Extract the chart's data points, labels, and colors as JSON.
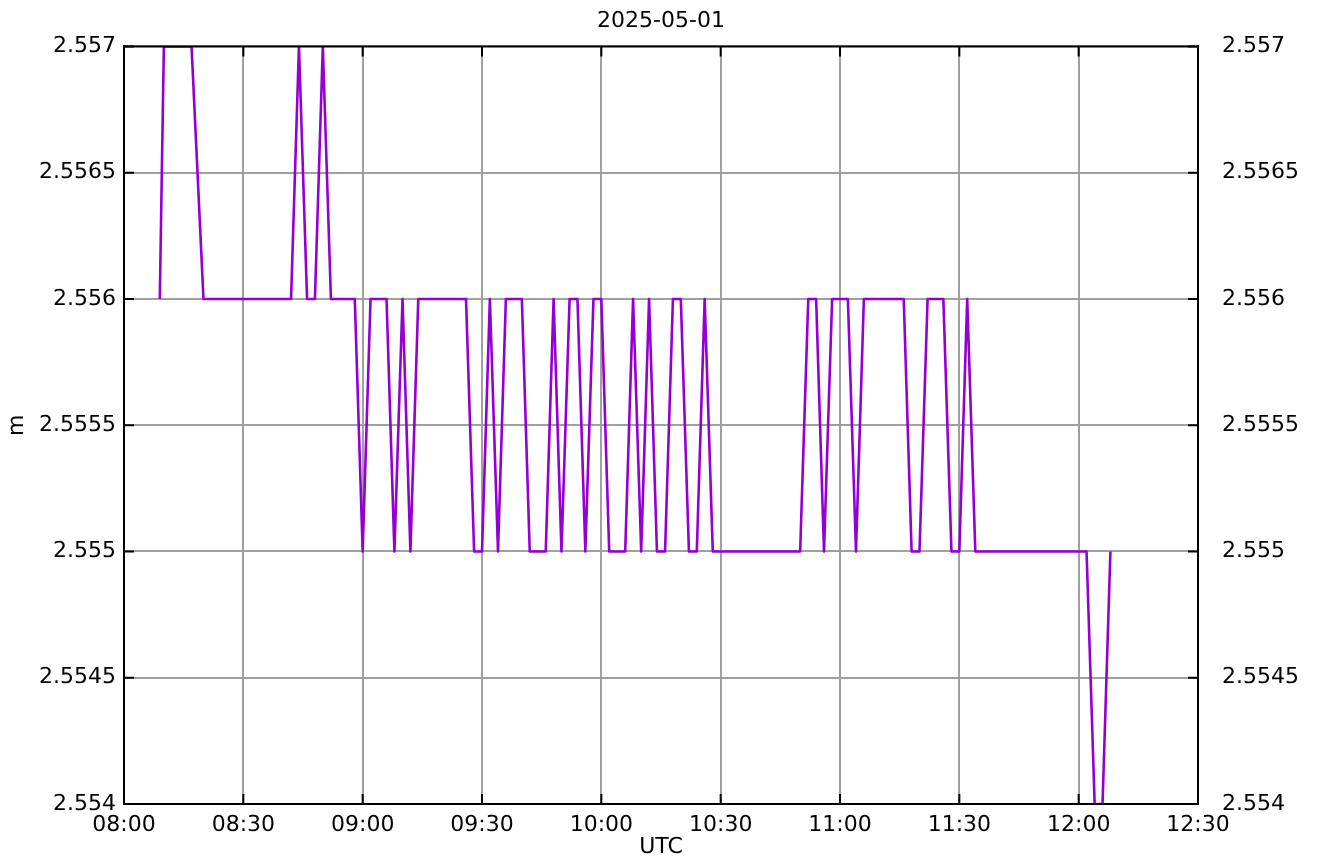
{
  "chart_data": {
    "type": "line",
    "title": "2025-05-01",
    "xlabel": "UTC",
    "ylabel": "m",
    "x": [
      8.15,
      8.167,
      8.283,
      8.333,
      8.7,
      8.733,
      8.767,
      8.8,
      8.833,
      8.867,
      8.967,
      9.0,
      9.033,
      9.1,
      9.133,
      9.167,
      9.2,
      9.233,
      9.433,
      9.467,
      9.5,
      9.533,
      9.567,
      9.6,
      9.667,
      9.7,
      9.767,
      9.8,
      9.833,
      9.867,
      9.9,
      9.933,
      9.967,
      10.0,
      10.033,
      10.1,
      10.133,
      10.167,
      10.2,
      10.233,
      10.267,
      10.3,
      10.333,
      10.367,
      10.4,
      10.433,
      10.467,
      10.833,
      10.867,
      10.9,
      10.933,
      10.967,
      11.033,
      11.067,
      11.1,
      11.267,
      11.3,
      11.333,
      11.367,
      11.433,
      11.467,
      11.5,
      11.533,
      11.567,
      12.033,
      12.067,
      12.1,
      12.133
    ],
    "series": [
      {
        "color": "#9400d3",
        "values": [
          2.556,
          2.557,
          2.557,
          2.556,
          2.556,
          2.557,
          2.556,
          2.556,
          2.557,
          2.556,
          2.556,
          2.555,
          2.556,
          2.556,
          2.555,
          2.556,
          2.555,
          2.556,
          2.556,
          2.555,
          2.555,
          2.556,
          2.555,
          2.556,
          2.556,
          2.555,
          2.555,
          2.556,
          2.555,
          2.556,
          2.556,
          2.555,
          2.556,
          2.556,
          2.555,
          2.555,
          2.556,
          2.555,
          2.556,
          2.555,
          2.555,
          2.556,
          2.556,
          2.555,
          2.555,
          2.556,
          2.555,
          2.555,
          2.556,
          2.556,
          2.555,
          2.556,
          2.556,
          2.555,
          2.556,
          2.556,
          2.555,
          2.555,
          2.556,
          2.556,
          2.555,
          2.555,
          2.556,
          2.555,
          2.555,
          2.554,
          2.554,
          2.555
        ]
      }
    ],
    "xlim": [
      8,
      12.5
    ],
    "xticks": [
      {
        "value": 8,
        "label": "08:00"
      },
      {
        "value": 8.5,
        "label": "08:30"
      },
      {
        "value": 9,
        "label": "09:00"
      },
      {
        "value": 9.5,
        "label": "09:30"
      },
      {
        "value": 10,
        "label": "10:00"
      },
      {
        "value": 10.5,
        "label": "10:30"
      },
      {
        "value": 11,
        "label": "11:00"
      },
      {
        "value": 11.5,
        "label": "11:30"
      },
      {
        "value": 12,
        "label": "12:00"
      },
      {
        "value": 12.5,
        "label": "12:30"
      }
    ],
    "ylim": [
      2.554,
      2.557
    ],
    "yticks": [
      2.554,
      2.5545,
      2.555,
      2.5555,
      2.556,
      2.5565,
      2.557
    ],
    "y2lim": [
      2.554,
      2.557
    ],
    "y2ticks": [
      2.554,
      2.5545,
      2.555,
      2.5555,
      2.556,
      2.5565,
      2.557
    ],
    "grid": true,
    "legend": false,
    "marker": "none",
    "line_style": "solid"
  }
}
